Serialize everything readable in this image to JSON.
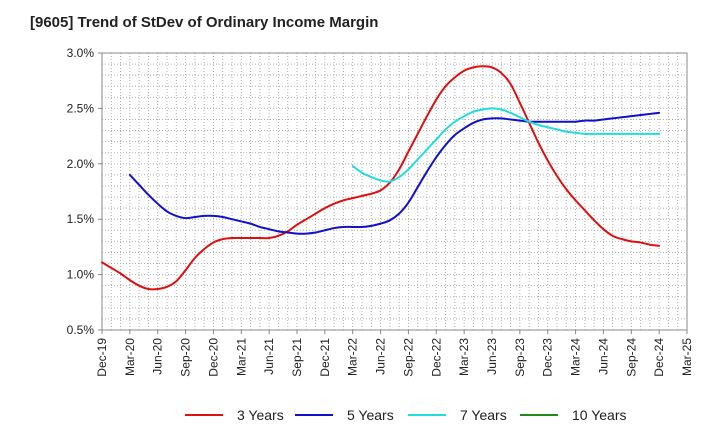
{
  "title": "[9605]  Trend of StDev of Ordinary Income Margin",
  "chart_data": {
    "type": "line",
    "title": "[9605]  Trend of StDev of Ordinary Income Margin",
    "xlabel": "",
    "ylabel": "",
    "x_ticks": [
      "Dec-19",
      "Mar-20",
      "Jun-20",
      "Sep-20",
      "Dec-20",
      "Mar-21",
      "Jun-21",
      "Sep-21",
      "Dec-21",
      "Mar-22",
      "Jun-22",
      "Sep-22",
      "Dec-22",
      "Mar-23",
      "Jun-23",
      "Sep-23",
      "Dec-23",
      "Mar-24",
      "Jun-24",
      "Sep-24",
      "Dec-24",
      "Mar-25"
    ],
    "y_ticks": [
      "0.5%",
      "1.0%",
      "1.5%",
      "2.0%",
      "2.5%",
      "3.0%"
    ],
    "ylim": [
      0.5,
      3.0
    ],
    "y_unit": "%",
    "grid": true,
    "legend_position": "bottom",
    "series": [
      {
        "name": "3 Years",
        "color": "#dd1111",
        "points": [
          [
            "Dec-19",
            1.11
          ],
          [
            "Jan-20",
            1.06
          ],
          [
            "Feb-20",
            1.01
          ],
          [
            "Mar-20",
            0.95
          ],
          [
            "Apr-20",
            0.9
          ],
          [
            "May-20",
            0.87
          ],
          [
            "Jun-20",
            0.87
          ],
          [
            "Jul-20",
            0.89
          ],
          [
            "Aug-20",
            0.94
          ],
          [
            "Sep-20",
            1.04
          ],
          [
            "Oct-20",
            1.15
          ],
          [
            "Nov-20",
            1.23
          ],
          [
            "Dec-20",
            1.29
          ],
          [
            "Jan-21",
            1.32
          ],
          [
            "Feb-21",
            1.33
          ],
          [
            "Mar-21",
            1.33
          ],
          [
            "Apr-21",
            1.33
          ],
          [
            "May-21",
            1.33
          ],
          [
            "Jun-21",
            1.33
          ],
          [
            "Jul-21",
            1.35
          ],
          [
            "Aug-21",
            1.39
          ],
          [
            "Sep-21",
            1.45
          ],
          [
            "Oct-21",
            1.5
          ],
          [
            "Nov-21",
            1.55
          ],
          [
            "Dec-21",
            1.6
          ],
          [
            "Jan-22",
            1.64
          ],
          [
            "Feb-22",
            1.67
          ],
          [
            "Mar-22",
            1.69
          ],
          [
            "Apr-22",
            1.71
          ],
          [
            "May-22",
            1.73
          ],
          [
            "Jun-22",
            1.76
          ],
          [
            "Jul-22",
            1.83
          ],
          [
            "Aug-22",
            1.95
          ],
          [
            "Sep-22",
            2.11
          ],
          [
            "Oct-22",
            2.27
          ],
          [
            "Nov-22",
            2.43
          ],
          [
            "Dec-22",
            2.58
          ],
          [
            "Jan-23",
            2.7
          ],
          [
            "Feb-23",
            2.78
          ],
          [
            "Mar-23",
            2.84
          ],
          [
            "Apr-23",
            2.87
          ],
          [
            "May-23",
            2.88
          ],
          [
            "Jun-23",
            2.87
          ],
          [
            "Jul-23",
            2.82
          ],
          [
            "Aug-23",
            2.72
          ],
          [
            "Sep-23",
            2.55
          ],
          [
            "Oct-23",
            2.37
          ],
          [
            "Nov-23",
            2.19
          ],
          [
            "Dec-23",
            2.03
          ],
          [
            "Jan-24",
            1.89
          ],
          [
            "Feb-24",
            1.77
          ],
          [
            "Mar-24",
            1.67
          ],
          [
            "Apr-24",
            1.58
          ],
          [
            "May-24",
            1.49
          ],
          [
            "Jun-24",
            1.41
          ],
          [
            "Jul-24",
            1.35
          ],
          [
            "Aug-24",
            1.32
          ],
          [
            "Sep-24",
            1.3
          ],
          [
            "Oct-24",
            1.29
          ],
          [
            "Nov-24",
            1.27
          ],
          [
            "Dec-24",
            1.26
          ]
        ]
      },
      {
        "name": "5 Years",
        "color": "#1111cc",
        "points": [
          [
            "Mar-20",
            1.9
          ],
          [
            "Apr-20",
            1.81
          ],
          [
            "May-20",
            1.72
          ],
          [
            "Jun-20",
            1.64
          ],
          [
            "Jul-20",
            1.57
          ],
          [
            "Aug-20",
            1.53
          ],
          [
            "Sep-20",
            1.51
          ],
          [
            "Oct-20",
            1.52
          ],
          [
            "Nov-20",
            1.53
          ],
          [
            "Dec-20",
            1.53
          ],
          [
            "Jan-21",
            1.52
          ],
          [
            "Feb-21",
            1.5
          ],
          [
            "Mar-21",
            1.48
          ],
          [
            "Apr-21",
            1.46
          ],
          [
            "May-21",
            1.43
          ],
          [
            "Jun-21",
            1.41
          ],
          [
            "Jul-21",
            1.39
          ],
          [
            "Aug-21",
            1.38
          ],
          [
            "Sep-21",
            1.37
          ],
          [
            "Oct-21",
            1.37
          ],
          [
            "Nov-21",
            1.38
          ],
          [
            "Dec-21",
            1.4
          ],
          [
            "Jan-22",
            1.42
          ],
          [
            "Feb-22",
            1.43
          ],
          [
            "Mar-22",
            1.43
          ],
          [
            "Apr-22",
            1.43
          ],
          [
            "May-22",
            1.44
          ],
          [
            "Jun-22",
            1.46
          ],
          [
            "Jul-22",
            1.49
          ],
          [
            "Aug-22",
            1.55
          ],
          [
            "Sep-22",
            1.65
          ],
          [
            "Oct-22",
            1.79
          ],
          [
            "Nov-22",
            1.93
          ],
          [
            "Dec-22",
            2.06
          ],
          [
            "Jan-23",
            2.17
          ],
          [
            "Feb-23",
            2.26
          ],
          [
            "Mar-23",
            2.32
          ],
          [
            "Apr-23",
            2.37
          ],
          [
            "May-23",
            2.4
          ],
          [
            "Jun-23",
            2.41
          ],
          [
            "Jul-23",
            2.41
          ],
          [
            "Aug-23",
            2.4
          ],
          [
            "Sep-23",
            2.39
          ],
          [
            "Oct-23",
            2.38
          ],
          [
            "Nov-23",
            2.38
          ],
          [
            "Dec-23",
            2.38
          ],
          [
            "Jan-24",
            2.38
          ],
          [
            "Feb-24",
            2.38
          ],
          [
            "Mar-24",
            2.38
          ],
          [
            "Apr-24",
            2.39
          ],
          [
            "May-24",
            2.39
          ],
          [
            "Jun-24",
            2.4
          ],
          [
            "Jul-24",
            2.41
          ],
          [
            "Aug-24",
            2.42
          ],
          [
            "Sep-24",
            2.43
          ],
          [
            "Oct-24",
            2.44
          ],
          [
            "Nov-24",
            2.45
          ],
          [
            "Dec-24",
            2.46
          ]
        ]
      },
      {
        "name": "7 Years",
        "color": "#22dddd",
        "points": [
          [
            "Mar-22",
            1.98
          ],
          [
            "Apr-22",
            1.92
          ],
          [
            "May-22",
            1.88
          ],
          [
            "Jun-22",
            1.85
          ],
          [
            "Jul-22",
            1.84
          ],
          [
            "Aug-22",
            1.88
          ],
          [
            "Sep-22",
            1.95
          ],
          [
            "Oct-22",
            2.04
          ],
          [
            "Nov-22",
            2.13
          ],
          [
            "Dec-22",
            2.22
          ],
          [
            "Jan-23",
            2.31
          ],
          [
            "Feb-23",
            2.38
          ],
          [
            "Mar-23",
            2.43
          ],
          [
            "Apr-23",
            2.47
          ],
          [
            "May-23",
            2.49
          ],
          [
            "Jun-23",
            2.5
          ],
          [
            "Jul-23",
            2.49
          ],
          [
            "Aug-23",
            2.46
          ],
          [
            "Sep-23",
            2.42
          ],
          [
            "Oct-23",
            2.38
          ],
          [
            "Nov-23",
            2.35
          ],
          [
            "Dec-23",
            2.33
          ],
          [
            "Jan-24",
            2.31
          ],
          [
            "Feb-24",
            2.29
          ],
          [
            "Mar-24",
            2.28
          ],
          [
            "Apr-24",
            2.27
          ],
          [
            "May-24",
            2.27
          ],
          [
            "Jun-24",
            2.27
          ],
          [
            "Jul-24",
            2.27
          ],
          [
            "Aug-24",
            2.27
          ],
          [
            "Sep-24",
            2.27
          ],
          [
            "Oct-24",
            2.27
          ],
          [
            "Nov-24",
            2.27
          ],
          [
            "Dec-24",
            2.27
          ]
        ]
      },
      {
        "name": "10 Years",
        "color": "#228822",
        "points": []
      }
    ]
  }
}
